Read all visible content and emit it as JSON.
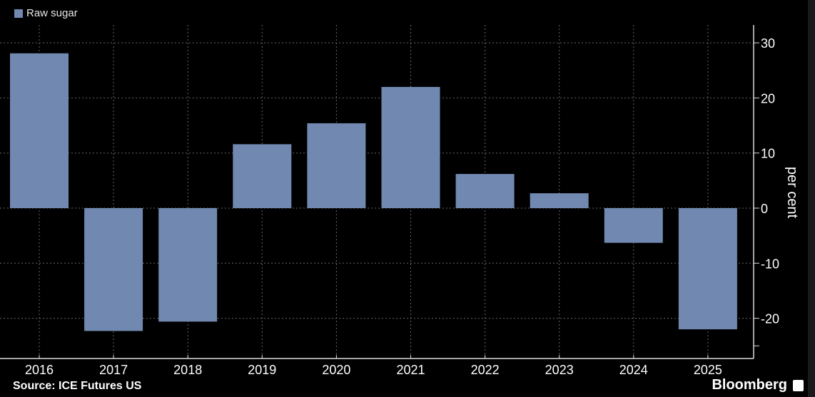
{
  "chart_data": {
    "type": "bar",
    "categories": [
      "2016",
      "2017",
      "2018",
      "2019",
      "2020",
      "2021",
      "2022",
      "2023",
      "2024",
      "2025"
    ],
    "series": [
      {
        "name": "Raw sugar",
        "values": [
          28.1,
          -22.3,
          -20.6,
          11.6,
          15.4,
          22.0,
          6.2,
          2.7,
          -6.3,
          -22.0
        ]
      }
    ],
    "ylabel": "per cent",
    "ylim": [
      -25,
      30
    ],
    "yticks": [
      30,
      20,
      10,
      0,
      -10,
      -20
    ],
    "grid": true,
    "legend": "top-left",
    "colors": {
      "bar": "#7189b0",
      "background": "#000000"
    }
  },
  "source": "Source: ICE Futures US",
  "brand": "Bloomberg"
}
